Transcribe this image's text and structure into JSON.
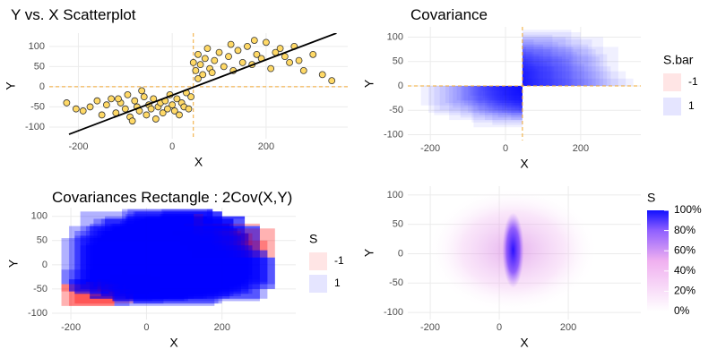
{
  "chart_data": [
    {
      "type": "scatter",
      "title": "Y vs. X Scatterplot",
      "x_label": "X",
      "y_label": "Y",
      "x": [
        -225,
        -205,
        -190,
        -175,
        -160,
        -150,
        -140,
        -130,
        -120,
        -110,
        -100,
        -95,
        -90,
        -80,
        -75,
        -70,
        -60,
        -55,
        -50,
        -45,
        -40,
        -35,
        -30,
        -25,
        -20,
        -15,
        -10,
        -5,
        0,
        5,
        10,
        15,
        20,
        25,
        30,
        35,
        40,
        -65,
        -85,
        -115,
        45,
        50,
        55,
        60,
        65,
        70,
        75,
        80,
        90,
        100,
        110,
        120,
        130,
        140,
        150,
        160,
        170,
        180,
        190,
        200,
        210,
        220,
        230,
        240,
        250,
        260,
        270,
        280,
        300,
        320,
        340,
        55,
        85,
        125,
        175
      ],
      "y": [
        -40,
        -55,
        -60,
        -50,
        -35,
        -70,
        -45,
        -30,
        -65,
        -40,
        -55,
        -20,
        -75,
        -35,
        -50,
        -60,
        -25,
        -70,
        -45,
        -55,
        -30,
        -80,
        -50,
        -40,
        -65,
        -35,
        -55,
        -20,
        -45,
        -60,
        -30,
        -70,
        -40,
        -50,
        -15,
        -55,
        -25,
        -10,
        -85,
        -30,
        60,
        40,
        80,
        55,
        30,
        70,
        95,
        45,
        65,
        85,
        50,
        75,
        40,
        90,
        60,
        100,
        55,
        80,
        70,
        110,
        45,
        85,
        95,
        75,
        60,
        100,
        65,
        40,
        80,
        30,
        15,
        20,
        35,
        105,
        115
      ],
      "color": "#ffd966",
      "trend": {
        "x": [
          -220,
          350
        ],
        "y": [
          -118,
          133
        ],
        "color": "#000000"
      },
      "vline": 45,
      "hline": 0,
      "ref_color": "#f0a830",
      "xlim": [
        -262,
        374
      ],
      "ylim": [
        -129,
        133
      ],
      "xticks": [
        -200,
        0,
        200
      ],
      "yticks": [
        -100,
        -50,
        0,
        50,
        100
      ]
    },
    {
      "type": "covariance",
      "title": "Covariance",
      "x_label": "X",
      "y_label": "Y",
      "legend_title": "S.bar",
      "series": [
        {
          "name": "-1",
          "color": "#ff0000"
        },
        {
          "name": "1",
          "color": "#0000ff"
        }
      ],
      "vline": 45,
      "hline": 0,
      "ref_color": "#f0a830",
      "xlim": [
        -260,
        360
      ],
      "ylim": [
        -112,
        121
      ],
      "xticks": [
        -200,
        0,
        200
      ],
      "yticks": [
        -100,
        -50,
        0,
        50,
        100
      ]
    },
    {
      "type": "rect",
      "title": "Covariances Rectangle : 2Cov(X,Y)",
      "x_label": "X",
      "y_label": "Y",
      "legend_title": "S",
      "series": [
        {
          "name": "-1",
          "color": "#ff0000"
        },
        {
          "name": "1",
          "color": "#0000ff"
        }
      ],
      "xlim": [
        -250,
        395
      ],
      "ylim": [
        -113,
        118
      ],
      "xticks": [
        -200,
        0,
        200
      ],
      "yticks": [
        -100,
        -50,
        0,
        50,
        100
      ]
    },
    {
      "type": "density",
      "x_label": "X",
      "y_label": "Y",
      "legend_title": "S",
      "colorbar_ticks": [
        {
          "value": 0,
          "label": "0%"
        },
        {
          "value": 20,
          "label": "20%"
        },
        {
          "value": 40,
          "label": "40%"
        },
        {
          "value": 60,
          "label": "60%"
        },
        {
          "value": 80,
          "label": "80%"
        },
        {
          "value": 100,
          "label": "100%"
        }
      ],
      "xlim": [
        -265,
        410
      ],
      "ylim": [
        -112,
        115
      ],
      "xticks": [
        -200,
        0,
        200
      ],
      "yticks": [
        -100,
        -50,
        0,
        50,
        100
      ]
    }
  ]
}
